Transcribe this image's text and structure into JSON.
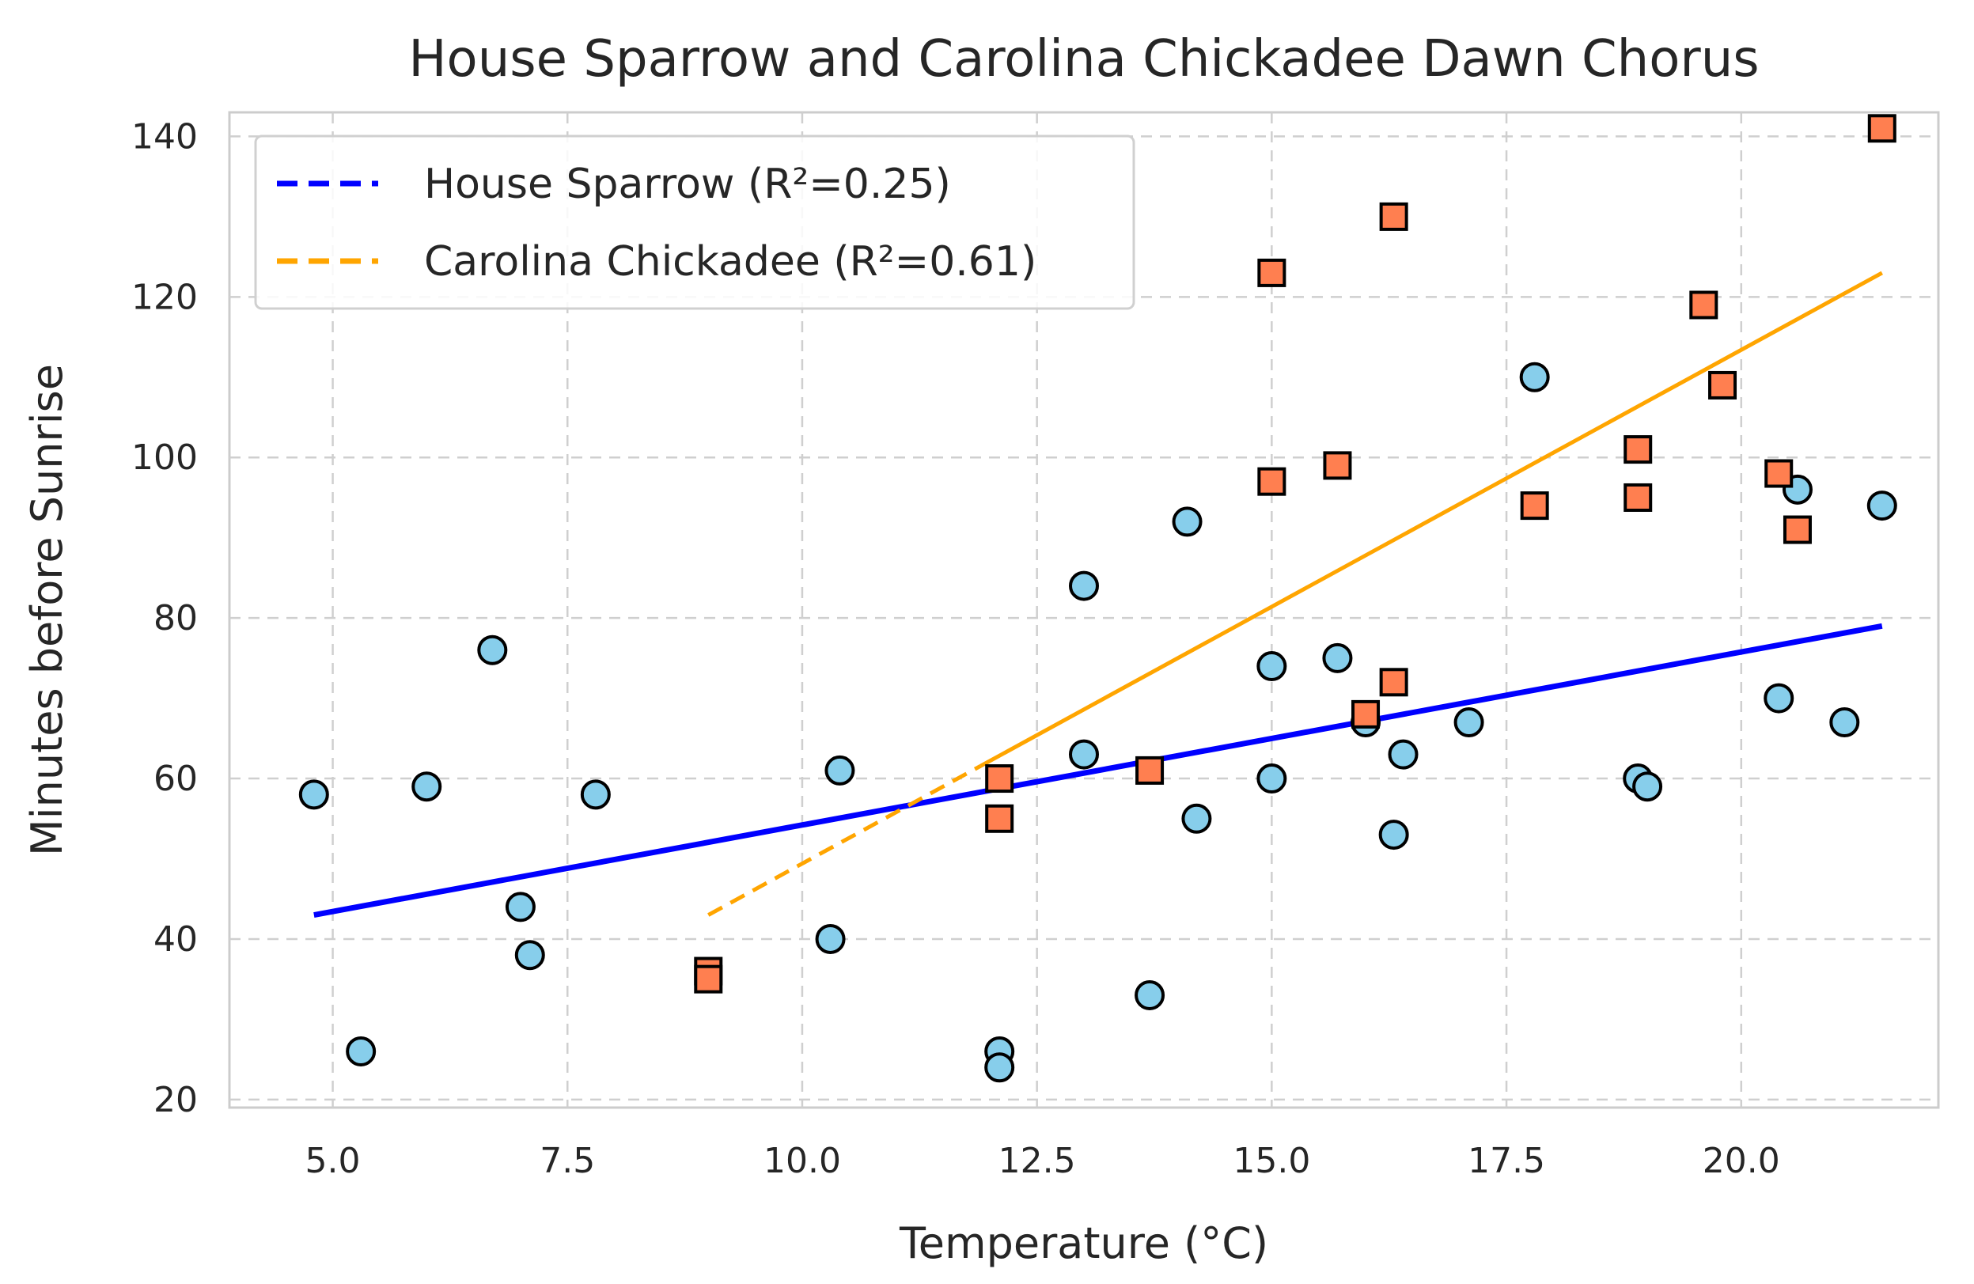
{
  "chart_data": {
    "type": "scatter",
    "title": "House Sparrow and Carolina Chickadee Dawn Chorus",
    "xlabel": "Temperature (°C)",
    "ylabel": "Minutes before Sunrise",
    "xlim": [
      3.9,
      22.1
    ],
    "ylim": [
      19,
      143
    ],
    "xticks": [
      5.0,
      7.5,
      10.0,
      12.5,
      15.0,
      17.5,
      20.0
    ],
    "xtick_labels": [
      "5.0",
      "7.5",
      "10.0",
      "12.5",
      "15.0",
      "17.5",
      "20.0"
    ],
    "yticks": [
      20,
      40,
      60,
      80,
      100,
      120,
      140
    ],
    "ytick_labels": [
      "20",
      "40",
      "60",
      "80",
      "100",
      "120",
      "140"
    ],
    "grid": true,
    "legend_position": "top-left",
    "series": [
      {
        "name": "House Sparrow",
        "marker": "circle",
        "color": "#87ceeb",
        "edge_color": "#000000",
        "points": [
          {
            "x": 4.8,
            "y": 58
          },
          {
            "x": 5.3,
            "y": 26
          },
          {
            "x": 6.0,
            "y": 59
          },
          {
            "x": 6.7,
            "y": 76
          },
          {
            "x": 7.0,
            "y": 44
          },
          {
            "x": 7.1,
            "y": 38
          },
          {
            "x": 7.8,
            "y": 58
          },
          {
            "x": 10.3,
            "y": 40
          },
          {
            "x": 10.4,
            "y": 61
          },
          {
            "x": 12.1,
            "y": 26
          },
          {
            "x": 12.1,
            "y": 24
          },
          {
            "x": 13.0,
            "y": 84
          },
          {
            "x": 13.0,
            "y": 63
          },
          {
            "x": 13.7,
            "y": 33
          },
          {
            "x": 14.1,
            "y": 92
          },
          {
            "x": 14.2,
            "y": 55
          },
          {
            "x": 15.0,
            "y": 60
          },
          {
            "x": 15.0,
            "y": 74
          },
          {
            "x": 15.7,
            "y": 75
          },
          {
            "x": 16.0,
            "y": 67
          },
          {
            "x": 16.3,
            "y": 53
          },
          {
            "x": 16.4,
            "y": 63
          },
          {
            "x": 17.1,
            "y": 67
          },
          {
            "x": 17.8,
            "y": 110
          },
          {
            "x": 18.9,
            "y": 60
          },
          {
            "x": 19.0,
            "y": 59
          },
          {
            "x": 20.4,
            "y": 70
          },
          {
            "x": 20.6,
            "y": 96
          },
          {
            "x": 21.1,
            "y": 67
          },
          {
            "x": 21.5,
            "y": 94
          }
        ],
        "trend": {
          "label": "House Sparrow (R²=0.25)",
          "color": "#0000ff",
          "x": [
            4.8,
            21.5
          ],
          "y": [
            43,
            79
          ]
        }
      },
      {
        "name": "Carolina Chickadee",
        "marker": "square",
        "color": "#ff7f50",
        "edge_color": "#000000",
        "points": [
          {
            "x": 9.0,
            "y": 36
          },
          {
            "x": 9.0,
            "y": 35
          },
          {
            "x": 12.1,
            "y": 60
          },
          {
            "x": 12.1,
            "y": 55
          },
          {
            "x": 13.7,
            "y": 61
          },
          {
            "x": 15.0,
            "y": 123
          },
          {
            "x": 15.0,
            "y": 97
          },
          {
            "x": 15.7,
            "y": 99
          },
          {
            "x": 16.0,
            "y": 68
          },
          {
            "x": 16.3,
            "y": 72
          },
          {
            "x": 16.3,
            "y": 130
          },
          {
            "x": 17.8,
            "y": 94
          },
          {
            "x": 18.9,
            "y": 95
          },
          {
            "x": 18.9,
            "y": 101
          },
          {
            "x": 19.6,
            "y": 119
          },
          {
            "x": 19.8,
            "y": 109
          },
          {
            "x": 20.4,
            "y": 98
          },
          {
            "x": 20.6,
            "y": 91
          },
          {
            "x": 21.5,
            "y": 141
          }
        ],
        "trend": {
          "label": "Carolina Chickadee (R²=0.61)",
          "color": "#ffa500",
          "x": [
            9.0,
            21.5
          ],
          "y": [
            43,
            123
          ],
          "solid_from_x": 11.9
        }
      }
    ]
  }
}
